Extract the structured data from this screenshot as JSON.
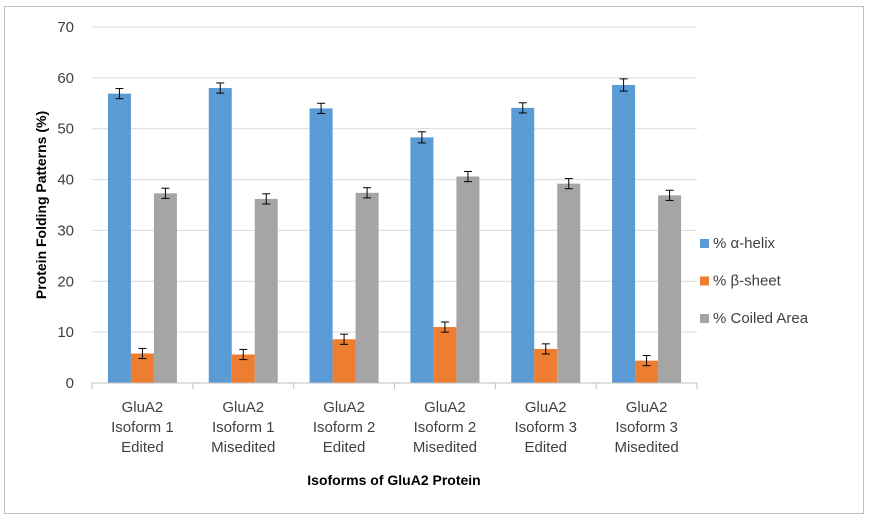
{
  "chart_data": {
    "type": "bar",
    "title": "",
    "xlabel": "Isoforms of GluA2 Protein",
    "ylabel": "Protein Folding Patterns (%)",
    "ylim": [
      0,
      70
    ],
    "yticks": [
      0,
      10,
      20,
      30,
      40,
      50,
      60,
      70
    ],
    "grid": true,
    "legend_position": "right",
    "categories": [
      [
        "GluA2",
        "Isoform 1",
        "Edited"
      ],
      [
        "GluA2",
        "Isoform 1",
        "Misedited"
      ],
      [
        "GluA2",
        "Isoform 2",
        "Edited"
      ],
      [
        "GluA2",
        "Isoform 2",
        "Misedited"
      ],
      [
        "GluA2",
        "Isoform 3",
        "Edited"
      ],
      [
        "GluA2",
        "Isoform 3",
        "Misedited"
      ]
    ],
    "series": [
      {
        "name": "% α-helix",
        "color": "#5b9bd5",
        "values": [
          56.9,
          58.0,
          54.0,
          48.3,
          54.1,
          58.6
        ],
        "errors": [
          1.0,
          1.0,
          1.0,
          1.1,
          1.0,
          1.2
        ]
      },
      {
        "name": "% β-sheet",
        "color": "#ed7d31",
        "values": [
          5.8,
          5.6,
          8.6,
          11.0,
          6.7,
          4.4
        ],
        "errors": [
          1.0,
          1.0,
          1.0,
          1.0,
          1.0,
          1.0
        ]
      },
      {
        "name": "% Coiled Area",
        "color": "#a5a5a5",
        "values": [
          37.3,
          36.2,
          37.4,
          40.6,
          39.2,
          36.9
        ],
        "errors": [
          1.0,
          1.0,
          1.0,
          1.0,
          1.0,
          1.0
        ]
      }
    ]
  }
}
